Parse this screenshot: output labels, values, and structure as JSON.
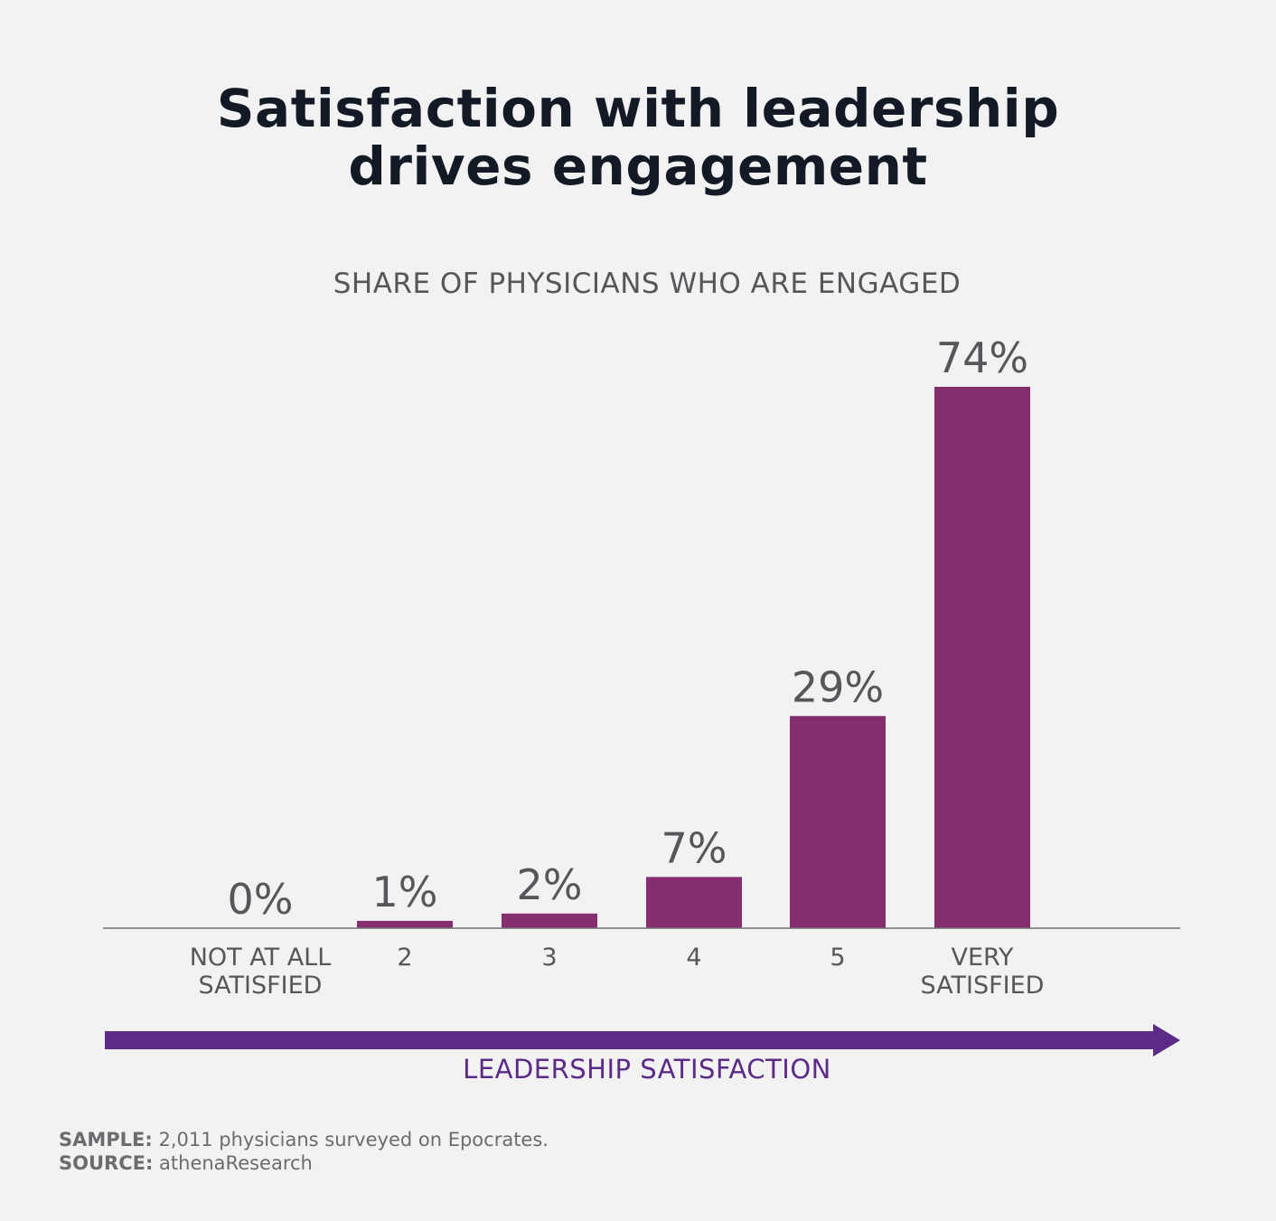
{
  "title_line1": "Satisfaction with leadership",
  "title_line2": "drives engagement",
  "subtitle": "SHARE OF PHYSICIANS WHO ARE ENGAGED",
  "axis_title": "LEADERSHIP SATISFACTION",
  "footnotes": {
    "sample_key": "SAMPLE:",
    "sample_text": " 2,011 physicians surveyed on Epocrates.",
    "source_key": "SOURCE:",
    "source_text": " athenaResearch"
  },
  "colors": {
    "bar": "#842e70",
    "arrow": "#5c2a87",
    "text": "#56575b",
    "background": "#f2f2f2"
  },
  "chart_data": {
    "type": "bar",
    "title": "Satisfaction with leadership drives engagement",
    "subtitle": "SHARE OF PHYSICIANS WHO ARE ENGAGED",
    "xlabel": "LEADERSHIP SATISFACTION",
    "ylabel": "",
    "categories": [
      [
        "NOT AT ALL",
        "SATISFIED"
      ],
      [
        "2"
      ],
      [
        "3"
      ],
      [
        "4"
      ],
      [
        "5"
      ],
      [
        "VERY",
        "SATISFIED"
      ]
    ],
    "values": [
      0,
      1,
      2,
      7,
      29,
      74
    ],
    "value_labels": [
      "0%",
      "1%",
      "2%",
      "7%",
      "29%",
      "74%"
    ],
    "unit": "%",
    "ylim": [
      0,
      74
    ],
    "grid": false,
    "legend": "none"
  }
}
